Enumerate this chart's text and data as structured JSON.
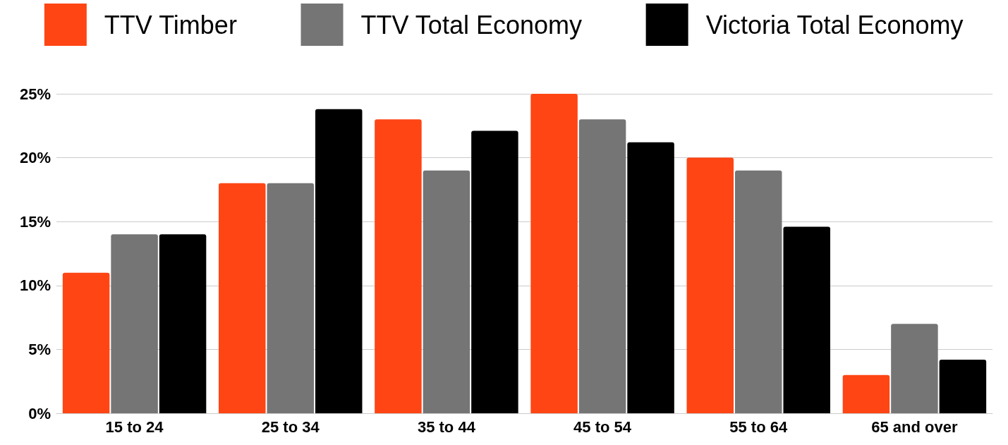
{
  "chart_data": {
    "type": "bar",
    "categories": [
      "15 to 24",
      "25 to 34",
      "35 to 44",
      "45 to 54",
      "55 to 64",
      "65 and over"
    ],
    "series": [
      {
        "name": "TTV Timber",
        "color": "#ff4514",
        "values": [
          11,
          18,
          23,
          25,
          20,
          3
        ]
      },
      {
        "name": "TTV Total Economy",
        "color": "#757575",
        "values": [
          14,
          18,
          19,
          23,
          19,
          7
        ]
      },
      {
        "name": "Victoria Total Economy",
        "color": "#000000",
        "values": [
          14,
          23.8,
          22.1,
          21.2,
          14.6,
          4.2
        ]
      }
    ],
    "ylim": [
      0,
      25
    ],
    "yticks": [
      {
        "value": 0,
        "label": "0%"
      },
      {
        "value": 5,
        "label": "5%"
      },
      {
        "value": 10,
        "label": "10%"
      },
      {
        "value": 15,
        "label": "15%"
      },
      {
        "value": 20,
        "label": "20%"
      },
      {
        "value": 25,
        "label": "25%"
      }
    ],
    "grid": "y",
    "legend": "top"
  }
}
